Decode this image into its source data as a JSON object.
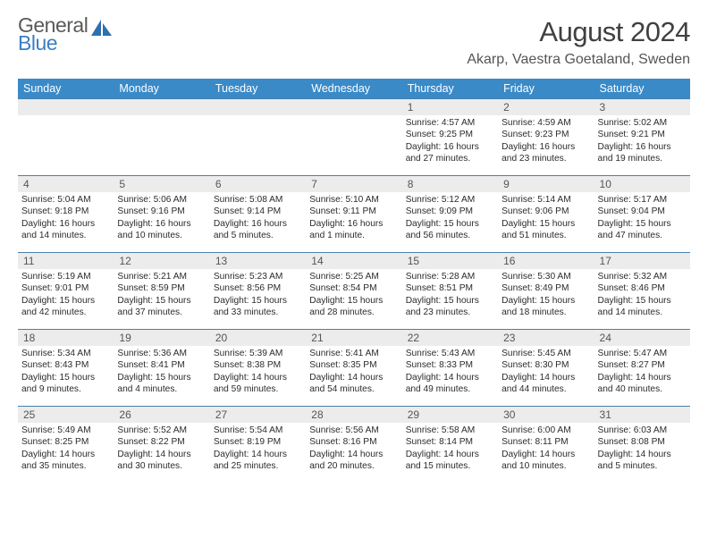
{
  "logo": {
    "general": "General",
    "blue": "Blue"
  },
  "title": "August 2024",
  "location": "Akarp, Vaestra Goetaland, Sweden",
  "colors": {
    "header_bg": "#3a8ac8",
    "header_fg": "#ffffff",
    "daynum_bg": "#ececec",
    "row_border": "#4a7fa8",
    "logo_general": "#5a5a5a",
    "logo_blue": "#3a7fc4"
  },
  "typography": {
    "title_fontsize": 31,
    "cell_fontsize": 10.2,
    "header_fontsize": 12.5
  },
  "weekdays": [
    "Sunday",
    "Monday",
    "Tuesday",
    "Wednesday",
    "Thursday",
    "Friday",
    "Saturday"
  ],
  "first_weekday_index": 4,
  "days_in_month": 31,
  "days": {
    "1": {
      "sunrise": "4:57 AM",
      "sunset": "9:25 PM",
      "dl_h": 16,
      "dl_m": 27
    },
    "2": {
      "sunrise": "4:59 AM",
      "sunset": "9:23 PM",
      "dl_h": 16,
      "dl_m": 23
    },
    "3": {
      "sunrise": "5:02 AM",
      "sunset": "9:21 PM",
      "dl_h": 16,
      "dl_m": 19
    },
    "4": {
      "sunrise": "5:04 AM",
      "sunset": "9:18 PM",
      "dl_h": 16,
      "dl_m": 14
    },
    "5": {
      "sunrise": "5:06 AM",
      "sunset": "9:16 PM",
      "dl_h": 16,
      "dl_m": 10
    },
    "6": {
      "sunrise": "5:08 AM",
      "sunset": "9:14 PM",
      "dl_h": 16,
      "dl_m": 5
    },
    "7": {
      "sunrise": "5:10 AM",
      "sunset": "9:11 PM",
      "dl_h": 16,
      "dl_m": 1
    },
    "8": {
      "sunrise": "5:12 AM",
      "sunset": "9:09 PM",
      "dl_h": 15,
      "dl_m": 56
    },
    "9": {
      "sunrise": "5:14 AM",
      "sunset": "9:06 PM",
      "dl_h": 15,
      "dl_m": 51
    },
    "10": {
      "sunrise": "5:17 AM",
      "sunset": "9:04 PM",
      "dl_h": 15,
      "dl_m": 47
    },
    "11": {
      "sunrise": "5:19 AM",
      "sunset": "9:01 PM",
      "dl_h": 15,
      "dl_m": 42
    },
    "12": {
      "sunrise": "5:21 AM",
      "sunset": "8:59 PM",
      "dl_h": 15,
      "dl_m": 37
    },
    "13": {
      "sunrise": "5:23 AM",
      "sunset": "8:56 PM",
      "dl_h": 15,
      "dl_m": 33
    },
    "14": {
      "sunrise": "5:25 AM",
      "sunset": "8:54 PM",
      "dl_h": 15,
      "dl_m": 28
    },
    "15": {
      "sunrise": "5:28 AM",
      "sunset": "8:51 PM",
      "dl_h": 15,
      "dl_m": 23
    },
    "16": {
      "sunrise": "5:30 AM",
      "sunset": "8:49 PM",
      "dl_h": 15,
      "dl_m": 18
    },
    "17": {
      "sunrise": "5:32 AM",
      "sunset": "8:46 PM",
      "dl_h": 15,
      "dl_m": 14
    },
    "18": {
      "sunrise": "5:34 AM",
      "sunset": "8:43 PM",
      "dl_h": 15,
      "dl_m": 9
    },
    "19": {
      "sunrise": "5:36 AM",
      "sunset": "8:41 PM",
      "dl_h": 15,
      "dl_m": 4
    },
    "20": {
      "sunrise": "5:39 AM",
      "sunset": "8:38 PM",
      "dl_h": 14,
      "dl_m": 59
    },
    "21": {
      "sunrise": "5:41 AM",
      "sunset": "8:35 PM",
      "dl_h": 14,
      "dl_m": 54
    },
    "22": {
      "sunrise": "5:43 AM",
      "sunset": "8:33 PM",
      "dl_h": 14,
      "dl_m": 49
    },
    "23": {
      "sunrise": "5:45 AM",
      "sunset": "8:30 PM",
      "dl_h": 14,
      "dl_m": 44
    },
    "24": {
      "sunrise": "5:47 AM",
      "sunset": "8:27 PM",
      "dl_h": 14,
      "dl_m": 40
    },
    "25": {
      "sunrise": "5:49 AM",
      "sunset": "8:25 PM",
      "dl_h": 14,
      "dl_m": 35
    },
    "26": {
      "sunrise": "5:52 AM",
      "sunset": "8:22 PM",
      "dl_h": 14,
      "dl_m": 30
    },
    "27": {
      "sunrise": "5:54 AM",
      "sunset": "8:19 PM",
      "dl_h": 14,
      "dl_m": 25
    },
    "28": {
      "sunrise": "5:56 AM",
      "sunset": "8:16 PM",
      "dl_h": 14,
      "dl_m": 20
    },
    "29": {
      "sunrise": "5:58 AM",
      "sunset": "8:14 PM",
      "dl_h": 14,
      "dl_m": 15
    },
    "30": {
      "sunrise": "6:00 AM",
      "sunset": "8:11 PM",
      "dl_h": 14,
      "dl_m": 10
    },
    "31": {
      "sunrise": "6:03 AM",
      "sunset": "8:08 PM",
      "dl_h": 14,
      "dl_m": 5
    }
  },
  "labels": {
    "sunrise_prefix": "Sunrise: ",
    "sunset_prefix": "Sunset: ",
    "daylight_prefix": "Daylight: ",
    "hours_word": " hours and ",
    "hour_word_singular": " hour and ",
    "minutes_word": " minutes.",
    "minute_word_singular": " minute."
  }
}
